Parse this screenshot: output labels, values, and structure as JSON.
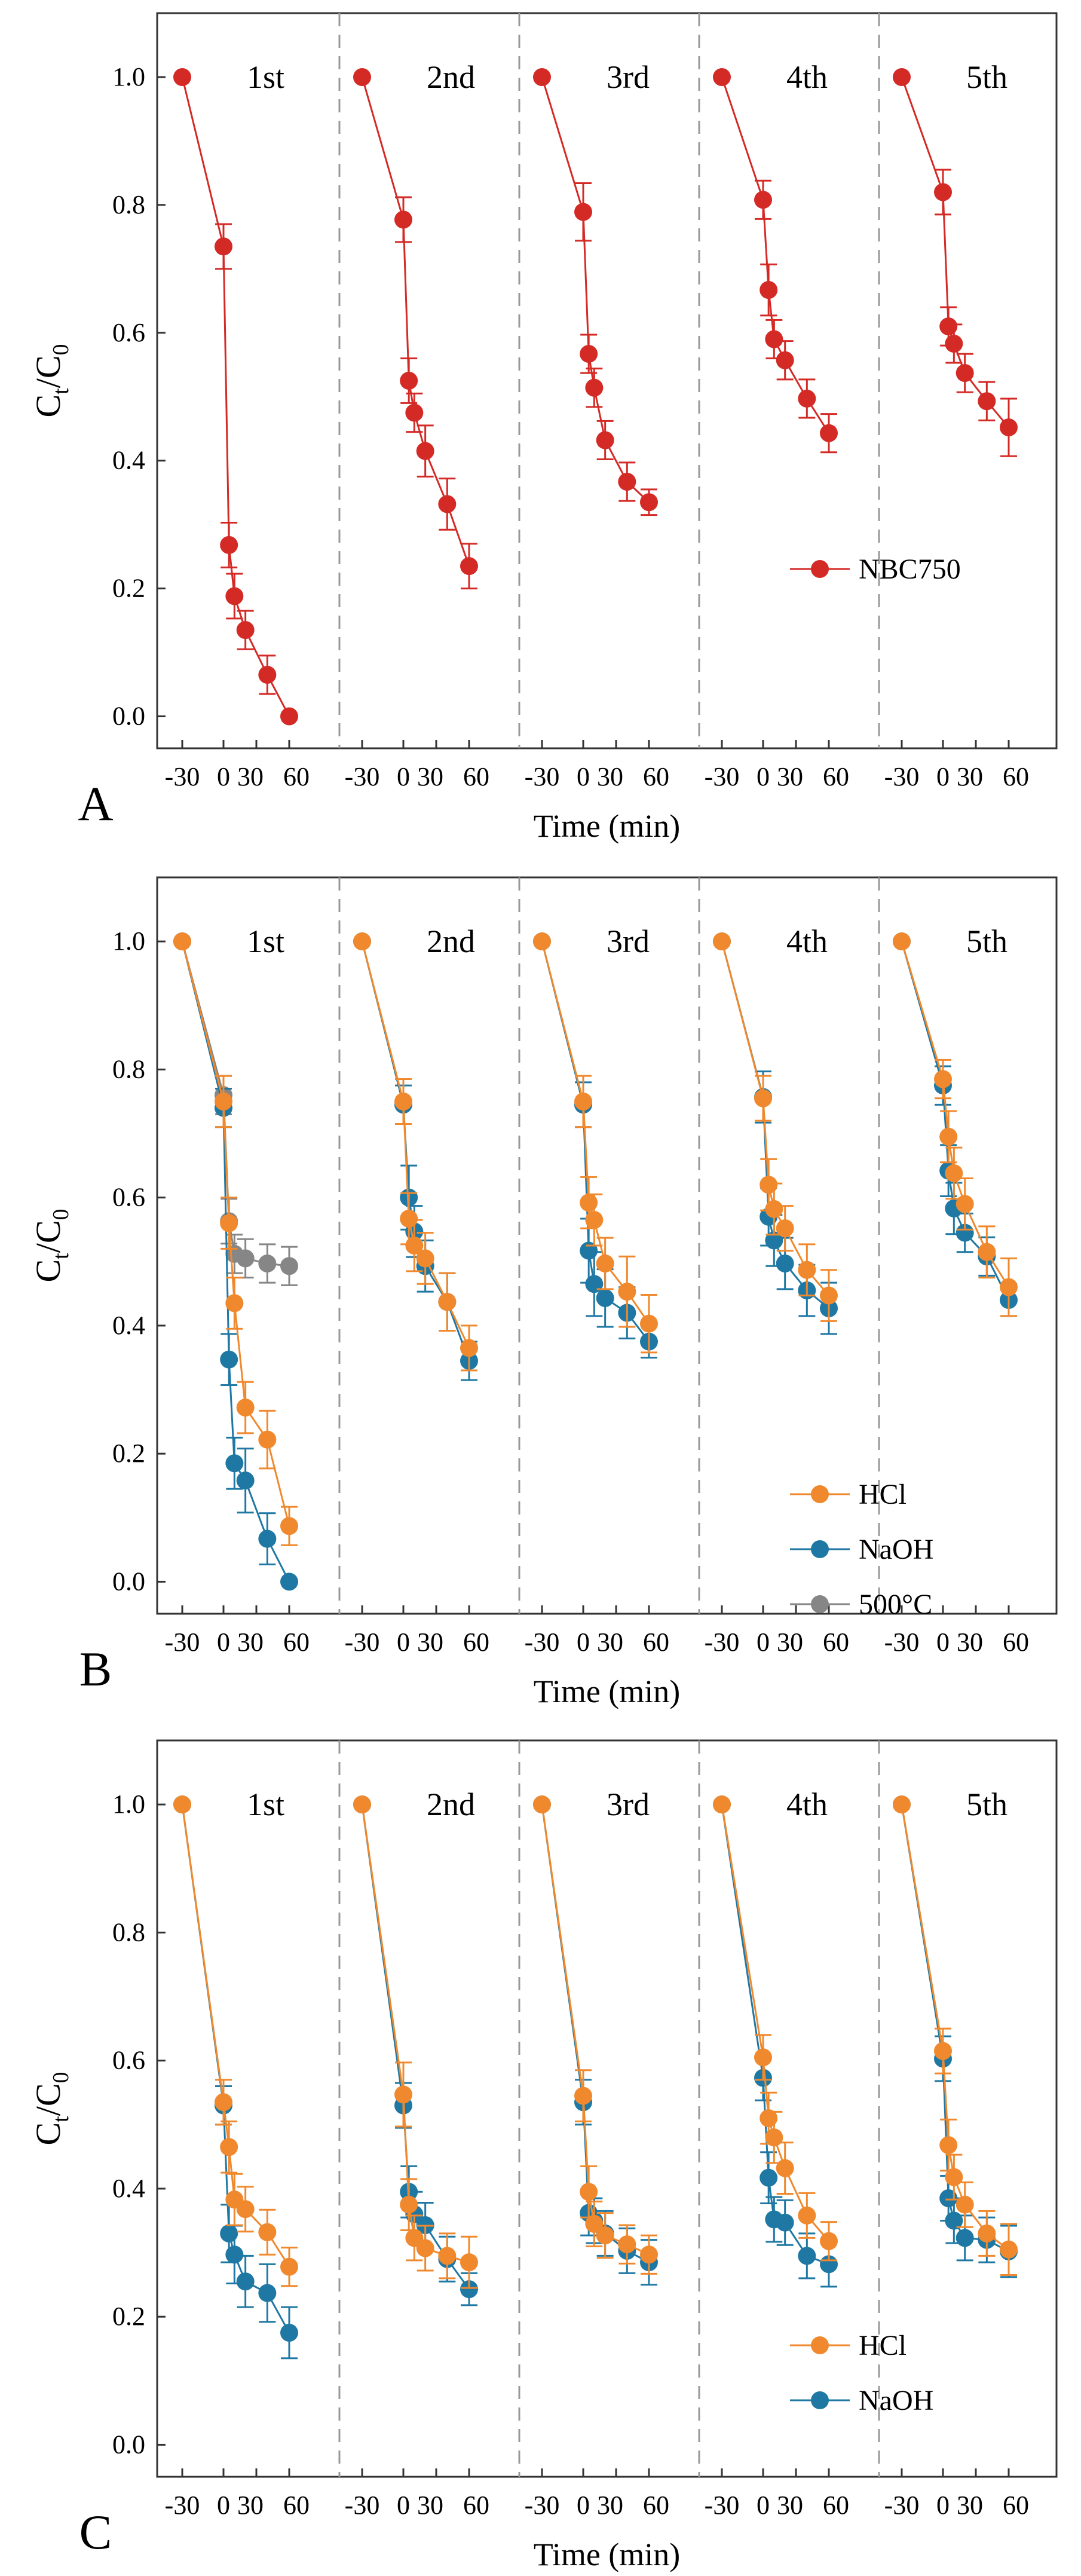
{
  "chart_data": [
    {
      "panel": "A",
      "type": "line",
      "xlabel": "Time (min)",
      "ylabel": "Ct/C0",
      "ylim": [
        -0.05,
        1.1
      ],
      "yticks": [
        "0.0",
        "0.2",
        "0.4",
        "0.6",
        "0.8",
        "1.0"
      ],
      "x_tick_labels": [
        "-30",
        "0",
        "30",
        "60"
      ],
      "cycles": [
        "1st",
        "2nd",
        "3rd",
        "4th",
        "5th"
      ],
      "x": [
        -30,
        0,
        5,
        10,
        20,
        40,
        60
      ],
      "legend": {
        "position": "right",
        "entries": [
          "NBC750"
        ]
      },
      "series": [
        {
          "name": "NBC750",
          "color": "#d42a26",
          "values": [
            [
              1.0,
              0.735,
              0.268,
              0.188,
              0.135,
              0.065,
              0.0
            ],
            [
              1.0,
              0.777,
              0.525,
              0.475,
              0.415,
              0.332,
              0.235
            ],
            [
              1.0,
              0.789,
              0.567,
              0.514,
              0.432,
              0.367,
              0.335
            ],
            [
              1.0,
              0.808,
              0.667,
              0.59,
              0.557,
              0.497,
              0.443
            ],
            [
              1.0,
              0.82,
              0.61,
              0.583,
              0.537,
              0.493,
              0.452
            ]
          ],
          "errors": [
            [
              0,
              0.035,
              0.035,
              0.035,
              0.03,
              0.03,
              0
            ],
            [
              0,
              0.035,
              0.035,
              0.03,
              0.04,
              0.04,
              0.035
            ],
            [
              0,
              0.045,
              0.03,
              0.03,
              0.03,
              0.03,
              0.02
            ],
            [
              0,
              0.03,
              0.04,
              0.03,
              0.03,
              0.03,
              0.03
            ],
            [
              0,
              0.035,
              0.03,
              0.03,
              0.03,
              0.03,
              0.045
            ]
          ]
        }
      ]
    },
    {
      "panel": "B",
      "type": "line",
      "xlabel": "Time (min)",
      "ylabel": "Ct/C0",
      "ylim": [
        -0.05,
        1.1
      ],
      "yticks": [
        "0.0",
        "0.2",
        "0.4",
        "0.6",
        "0.8",
        "1.0"
      ],
      "x_tick_labels": [
        "-30",
        "0",
        "30",
        "60"
      ],
      "cycles": [
        "1st",
        "2nd",
        "3rd",
        "4th",
        "5th"
      ],
      "x": [
        -30,
        0,
        5,
        10,
        20,
        40,
        60
      ],
      "legend": {
        "position": "bottom-right",
        "entries": [
          "HCl",
          "NaOH",
          "500°C"
        ]
      },
      "series": [
        {
          "name": "HCl",
          "color": "#f0892d",
          "values": [
            [
              1.0,
              0.75,
              0.56,
              0.435,
              0.272,
              0.222,
              0.087
            ],
            [
              1.0,
              0.75,
              0.567,
              0.525,
              0.505,
              0.437,
              0.365
            ],
            [
              1.0,
              0.75,
              0.592,
              0.565,
              0.497,
              0.453,
              0.403
            ],
            [
              1.0,
              0.755,
              0.62,
              0.582,
              0.552,
              0.487,
              0.447
            ],
            [
              1.0,
              0.785,
              0.695,
              0.638,
              0.59,
              0.515,
              0.46
            ]
          ],
          "errors": [
            [
              0,
              0.04,
              0.04,
              0.04,
              0.04,
              0.045,
              0.03
            ],
            [
              0,
              0.035,
              0.04,
              0.04,
              0.04,
              0.045,
              0.035
            ],
            [
              0,
              0.04,
              0.04,
              0.04,
              0.04,
              0.055,
              0.045
            ],
            [
              0,
              0.035,
              0.04,
              0.04,
              0.035,
              0.04,
              0.04
            ],
            [
              0,
              0.03,
              0.04,
              0.04,
              0.04,
              0.04,
              0.045
            ]
          ]
        },
        {
          "name": "NaOH",
          "color": "#1f78a3",
          "values": [
            [
              1.0,
              0.74,
              0.347,
              0.185,
              0.158,
              0.067,
              0.0
            ],
            [
              1.0,
              0.745,
              0.6,
              0.547,
              0.493,
              0.437,
              0.345
            ],
            [
              1.0,
              0.745,
              0.517,
              0.465,
              0.443,
              0.42,
              0.375
            ],
            [
              1.0,
              0.757,
              0.57,
              0.533,
              0.497,
              0.455,
              0.427
            ],
            [
              1.0,
              0.775,
              0.642,
              0.583,
              0.545,
              0.508,
              0.44
            ]
          ],
          "errors": [
            [
              0,
              0.03,
              0.04,
              0.04,
              0.05,
              0.04,
              0
            ],
            [
              0,
              0.03,
              0.05,
              0.04,
              0.04,
              0.045,
              0.03
            ],
            [
              0,
              0.035,
              0.05,
              0.05,
              0.045,
              0.04,
              0.025
            ],
            [
              0,
              0.04,
              0.045,
              0.04,
              0.04,
              0.04,
              0.04
            ],
            [
              0,
              0.03,
              0.04,
              0.04,
              0.03,
              0.03,
              0.025
            ]
          ]
        },
        {
          "name": "500°C",
          "color": "#868686",
          "values": [
            [
              1.0,
              0.76,
              0.563,
              0.512,
              0.505,
              0.497,
              0.493
            ]
          ],
          "errors": [
            [
              0,
              0.03,
              0.035,
              0.03,
              0.03,
              0.03,
              0.03
            ]
          ]
        }
      ]
    },
    {
      "panel": "C",
      "type": "line",
      "xlabel": "Time (min)",
      "ylabel": "Ct/C0",
      "ylim": [
        -0.05,
        1.1
      ],
      "yticks": [
        "0.0",
        "0.2",
        "0.4",
        "0.6",
        "0.8",
        "1.0"
      ],
      "x_tick_labels": [
        "-30",
        "0",
        "30",
        "60"
      ],
      "cycles": [
        "1st",
        "2nd",
        "3rd",
        "4th",
        "5th"
      ],
      "x": [
        -30,
        0,
        5,
        10,
        20,
        40,
        60
      ],
      "legend": {
        "position": "bottom-right",
        "entries": [
          "HCl",
          "NaOH"
        ]
      },
      "series": [
        {
          "name": "HCl",
          "color": "#f0892d",
          "values": [
            [
              1.0,
              0.535,
              0.465,
              0.383,
              0.368,
              0.332,
              0.278
            ],
            [
              1.0,
              0.547,
              0.375,
              0.323,
              0.307,
              0.295,
              0.285
            ],
            [
              1.0,
              0.545,
              0.395,
              0.345,
              0.327,
              0.313,
              0.297
            ],
            [
              1.0,
              0.605,
              0.51,
              0.48,
              0.432,
              0.358,
              0.318
            ],
            [
              1.0,
              0.615,
              0.468,
              0.418,
              0.375,
              0.33,
              0.305
            ]
          ],
          "errors": [
            [
              0,
              0.035,
              0.04,
              0.04,
              0.035,
              0.035,
              0.03
            ],
            [
              0,
              0.05,
              0.04,
              0.035,
              0.035,
              0.035,
              0.04
            ],
            [
              0,
              0.04,
              0.04,
              0.035,
              0.035,
              0.03,
              0.03
            ],
            [
              0,
              0.035,
              0.04,
              0.04,
              0.04,
              0.035,
              0.03
            ],
            [
              0,
              0.035,
              0.04,
              0.035,
              0.035,
              0.035,
              0.04
            ]
          ]
        },
        {
          "name": "NaOH",
          "color": "#1f78a3",
          "values": [
            [
              1.0,
              0.53,
              0.33,
              0.297,
              0.255,
              0.237,
              0.175
            ],
            [
              1.0,
              0.53,
              0.395,
              0.36,
              0.343,
              0.29,
              0.243
            ],
            [
              1.0,
              0.535,
              0.362,
              0.35,
              0.33,
              0.303,
              0.285
            ],
            [
              1.0,
              0.573,
              0.417,
              0.352,
              0.347,
              0.295,
              0.282
            ],
            [
              1.0,
              0.603,
              0.385,
              0.35,
              0.323,
              0.32,
              0.302
            ]
          ],
          "errors": [
            [
              0,
              0.03,
              0.045,
              0.045,
              0.04,
              0.045,
              0.04
            ],
            [
              0,
              0.035,
              0.04,
              0.035,
              0.035,
              0.035,
              0.025
            ],
            [
              0,
              0.035,
              0.035,
              0.035,
              0.035,
              0.035,
              0.035
            ],
            [
              0,
              0.035,
              0.04,
              0.035,
              0.035,
              0.035,
              0.035
            ],
            [
              0,
              0.035,
              0.035,
              0.035,
              0.035,
              0.035,
              0.04
            ]
          ]
        }
      ]
    }
  ]
}
